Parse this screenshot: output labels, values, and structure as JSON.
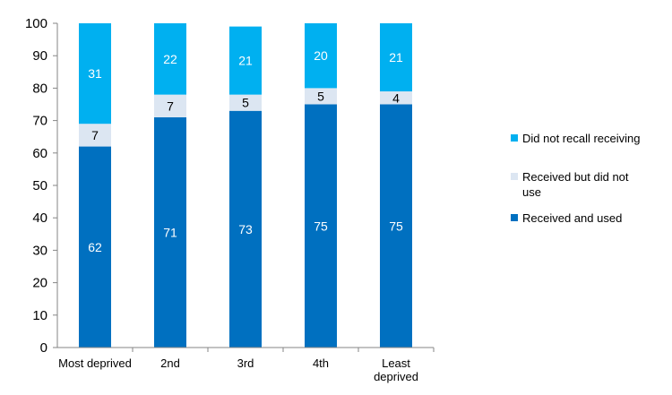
{
  "chart_data": {
    "type": "bar",
    "stacked": true,
    "categories": [
      "Most deprived",
      "2nd",
      "3rd",
      "4th",
      "Least deprived"
    ],
    "series": [
      {
        "name": "Received and used",
        "values": [
          62,
          71,
          73,
          75,
          75
        ],
        "color": "#0070C0",
        "label_color": "#ffffff"
      },
      {
        "name": "Received but did not use",
        "values": [
          7,
          7,
          5,
          5,
          4
        ],
        "color": "#DCE6F2",
        "label_color": "#000000"
      },
      {
        "name": "Did not recall receiving",
        "values": [
          31,
          22,
          21,
          20,
          21
        ],
        "color": "#00B0F0",
        "label_color": "#ffffff"
      }
    ],
    "ylim": [
      0,
      100
    ],
    "yticks": [
      0,
      10,
      20,
      30,
      40,
      50,
      60,
      70,
      80,
      90,
      100
    ],
    "legend_order": [
      "Did not recall receiving",
      "Received but did not use",
      "Received and used"
    ],
    "legend_position": "right",
    "grid": false,
    "title": "",
    "xlabel": "",
    "ylabel": ""
  }
}
